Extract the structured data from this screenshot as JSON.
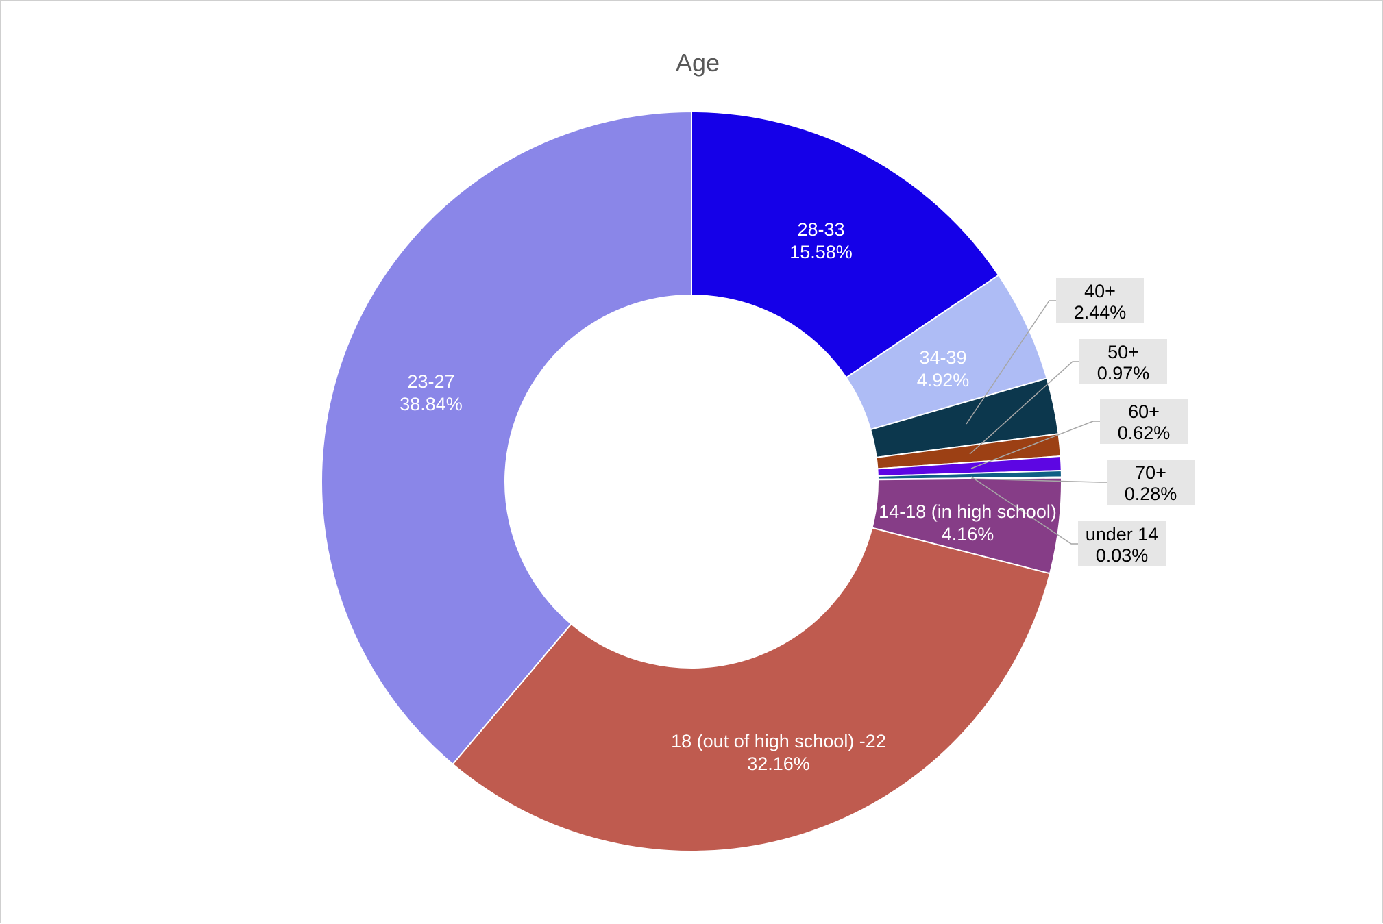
{
  "chart_data": {
    "type": "pie",
    "variant": "donut",
    "title": "Age",
    "slices": [
      {
        "label": "28-33",
        "value": 15.58,
        "display": "15.58%",
        "color": "#1500e8",
        "label_style": "inside"
      },
      {
        "label": "34-39",
        "value": 4.92,
        "display": "4.92%",
        "color": "#aebcf5",
        "label_style": "inside"
      },
      {
        "label": "40+",
        "value": 2.44,
        "display": "2.44%",
        "color": "#0c374d",
        "label_style": "callout"
      },
      {
        "label": "50+",
        "value": 0.97,
        "display": "0.97%",
        "color": "#9c4014",
        "label_style": "callout"
      },
      {
        "label": "60+",
        "value": 0.62,
        "display": "0.62%",
        "color": "#5d06e3",
        "label_style": "callout"
      },
      {
        "label": "70+",
        "value": 0.28,
        "display": "0.28%",
        "color": "#0f5f84",
        "label_style": "callout"
      },
      {
        "label": "under 14",
        "value": 0.03,
        "display": "0.03%",
        "color": "#6a8a9e",
        "label_style": "callout"
      },
      {
        "label": "14-18 (in high school)",
        "value": 4.16,
        "display": "4.16%",
        "color": "#863d87",
        "label_style": "inside"
      },
      {
        "label": "18 (out of high school) -22",
        "value": 32.16,
        "display": "32.16%",
        "color": "#bf5b4f",
        "label_style": "inside"
      },
      {
        "label": "23-27",
        "value": 38.84,
        "display": "38.84%",
        "color": "#8a86e8",
        "label_style": "inside"
      }
    ],
    "start_angle_deg": 0,
    "direction": "clockwise",
    "legend": "none"
  }
}
